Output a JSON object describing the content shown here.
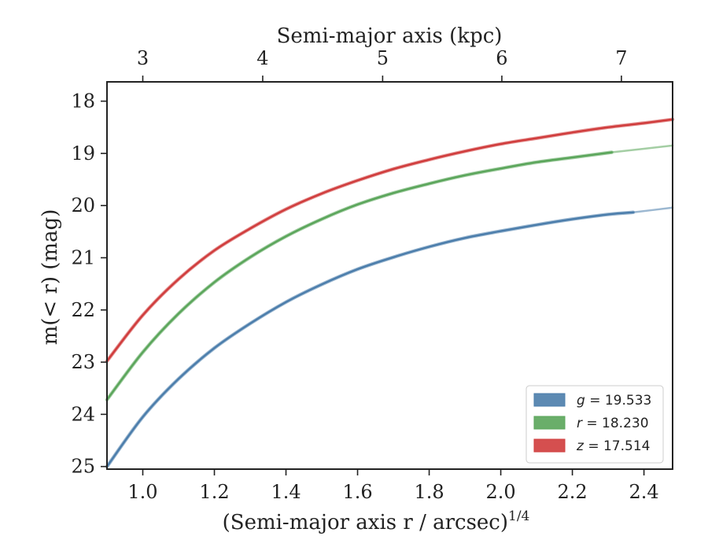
{
  "chart_data": {
    "type": "line",
    "xlabel": "(Semi-major axis r / arcsec)",
    "xlabel_exponent": "1/4",
    "ylabel": "m(< r) (mag)",
    "top_xlabel": "Semi-major axis (kpc)",
    "xlim": [
      0.9,
      2.48
    ],
    "ylim": [
      25.05,
      17.63
    ],
    "y_inverted": true,
    "grid": false,
    "legend_position": "bottom-right",
    "x_ticks": [
      "1.0",
      "1.2",
      "1.4",
      "1.6",
      "1.8",
      "2.0",
      "2.2",
      "2.4"
    ],
    "x_tick_values": [
      1.0,
      1.2,
      1.4,
      1.6,
      1.8,
      2.0,
      2.2,
      2.4
    ],
    "y_ticks": [
      "18",
      "19",
      "20",
      "21",
      "22",
      "23",
      "24",
      "25"
    ],
    "y_tick_values": [
      18,
      19,
      20,
      21,
      22,
      23,
      24,
      25
    ],
    "top_ticks": [
      "3",
      "4",
      "5",
      "6",
      "7"
    ],
    "top_tick_positions_x": [
      1.0,
      1.335,
      1.67,
      2.003,
      2.337
    ],
    "series": [
      {
        "name": "g = 19.533",
        "band": "g",
        "mag_text": "19.533",
        "color": "#4b7dab",
        "x": [
          0.9,
          1.0,
          1.1,
          1.2,
          1.3,
          1.4,
          1.5,
          1.6,
          1.7,
          1.8,
          1.9,
          2.0,
          2.1,
          2.2,
          2.3,
          2.37
        ],
        "y": [
          25.0,
          24.05,
          23.32,
          22.73,
          22.26,
          21.85,
          21.51,
          21.22,
          20.99,
          20.79,
          20.62,
          20.49,
          20.37,
          20.26,
          20.17,
          20.13
        ],
        "extension_x": [
          2.37,
          2.48
        ],
        "extension_y": [
          20.13,
          20.04
        ]
      },
      {
        "name": "r = 18.230",
        "band": "r",
        "mag_text": "18.230",
        "color": "#5aa55a",
        "x": [
          0.9,
          1.0,
          1.1,
          1.2,
          1.3,
          1.4,
          1.5,
          1.6,
          1.7,
          1.8,
          1.9,
          2.0,
          2.1,
          2.2,
          2.31
        ],
        "y": [
          23.72,
          22.81,
          22.07,
          21.47,
          20.99,
          20.59,
          20.26,
          19.98,
          19.76,
          19.58,
          19.42,
          19.29,
          19.17,
          19.08,
          18.98
        ],
        "extension_x": [
          2.31,
          2.48
        ],
        "extension_y": [
          18.98,
          18.85
        ]
      },
      {
        "name": "z = 17.514",
        "band": "z",
        "mag_text": "17.514",
        "color": "#d03c3c",
        "x": [
          0.9,
          1.0,
          1.1,
          1.2,
          1.3,
          1.4,
          1.5,
          1.6,
          1.7,
          1.8,
          1.9,
          2.0,
          2.1,
          2.2,
          2.3,
          2.4,
          2.48
        ],
        "y": [
          22.98,
          22.1,
          21.41,
          20.86,
          20.44,
          20.07,
          19.77,
          19.52,
          19.3,
          19.12,
          18.96,
          18.82,
          18.71,
          18.6,
          18.5,
          18.42,
          18.35
        ]
      }
    ]
  }
}
